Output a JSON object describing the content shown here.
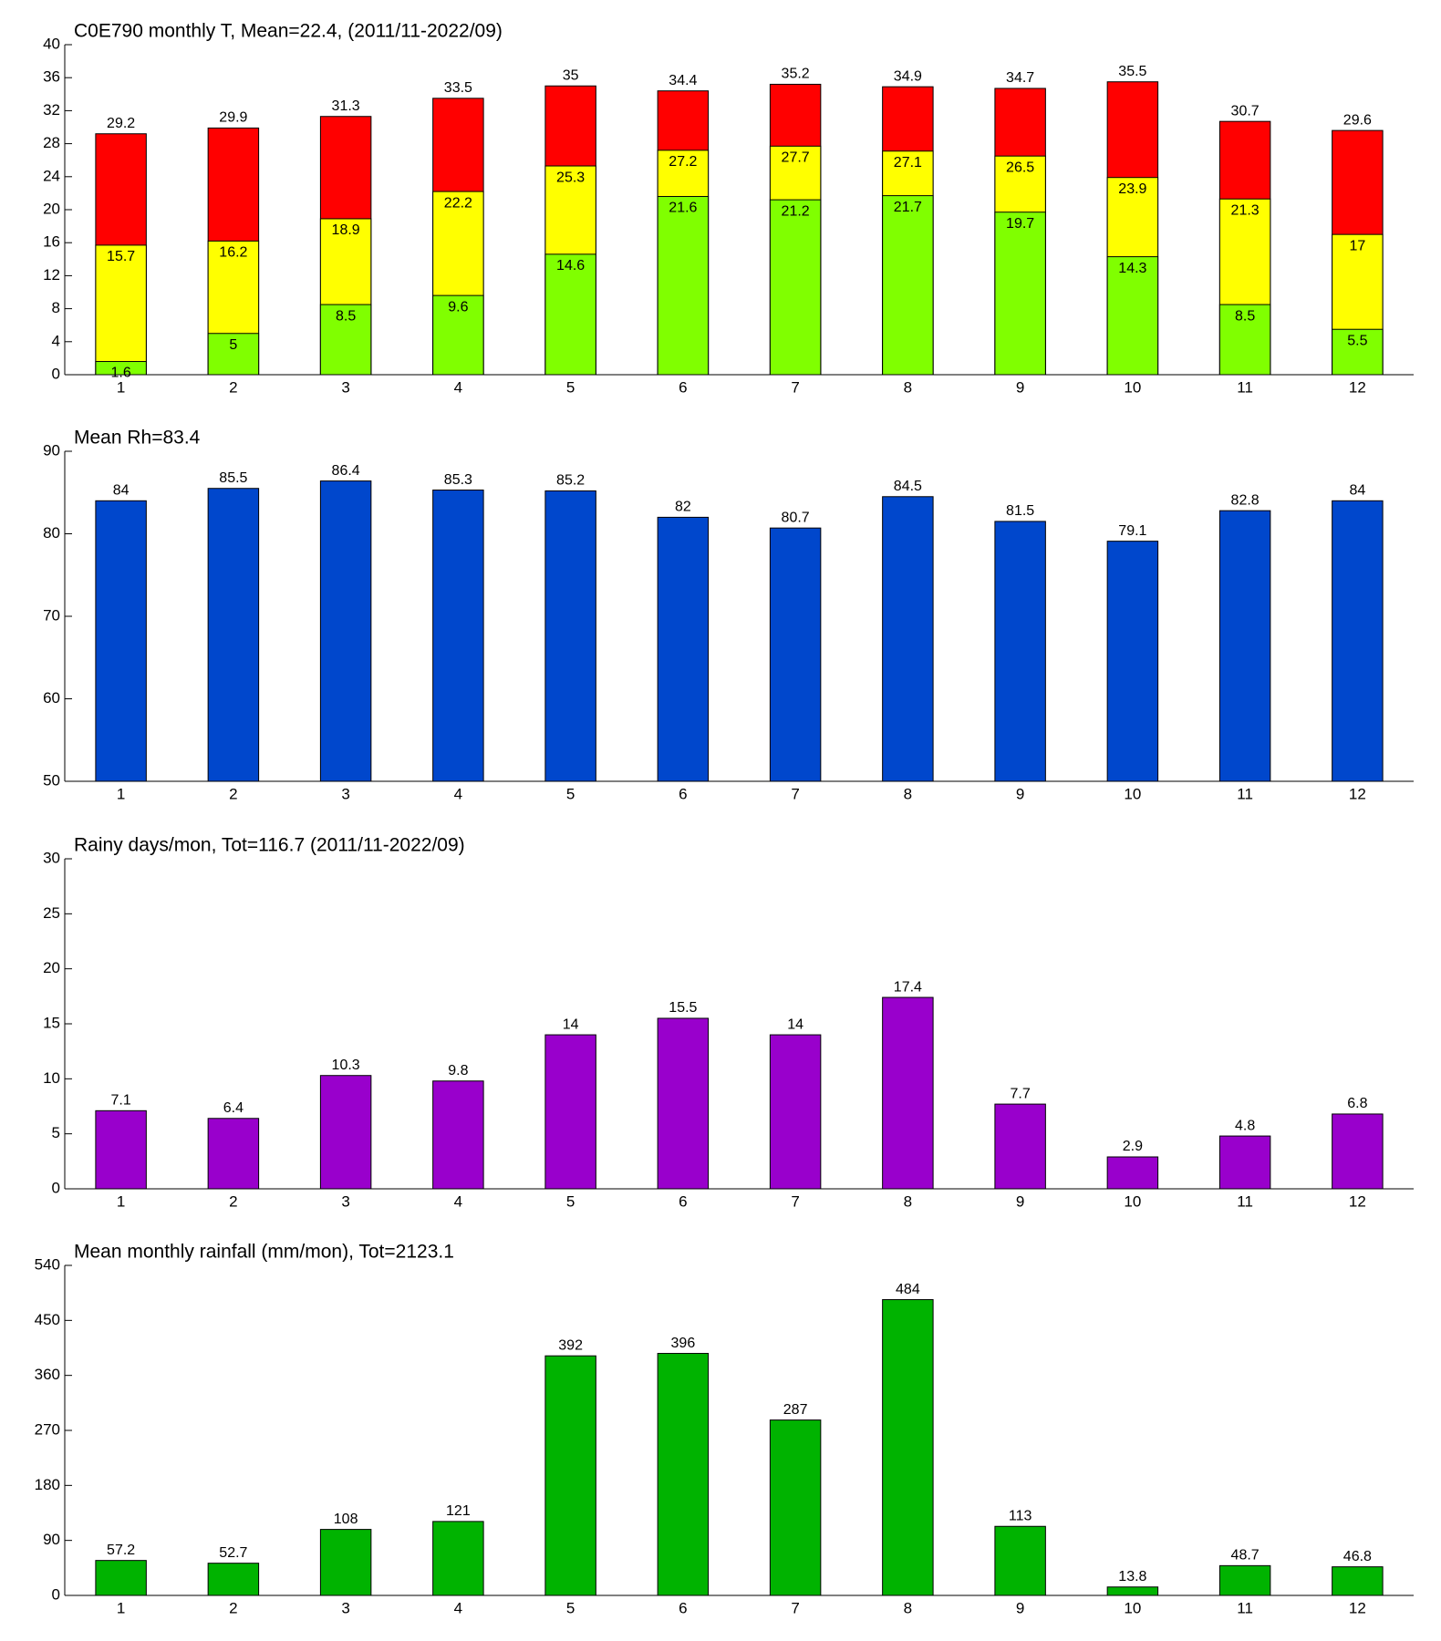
{
  "chart_data": [
    {
      "type": "bar",
      "title": "C0E790 monthly T, Mean=22.4, (2011/11-2022/09)",
      "categories": [
        "1",
        "2",
        "3",
        "4",
        "5",
        "6",
        "7",
        "8",
        "9",
        "10",
        "11",
        "12"
      ],
      "series": [
        {
          "color": "#ff0000",
          "values": [
            29.2,
            29.9,
            31.3,
            33.5,
            35,
            34.4,
            35.2,
            34.9,
            34.7,
            35.5,
            30.7,
            29.6
          ]
        },
        {
          "color": "#ffff00",
          "values": [
            15.7,
            16.2,
            18.9,
            22.2,
            25.3,
            27.2,
            27.7,
            27.1,
            26.5,
            23.9,
            21.3,
            17
          ]
        },
        {
          "color": "#80ff00",
          "values": [
            1.6,
            5,
            8.5,
            9.6,
            14.6,
            21.6,
            21.2,
            21.7,
            19.7,
            14.3,
            8.5,
            5.5
          ]
        }
      ],
      "ylim": [
        0,
        40
      ],
      "yticks": [
        0,
        4,
        8,
        12,
        16,
        20,
        24,
        28,
        32,
        36,
        40
      ]
    },
    {
      "type": "bar",
      "title": "Mean Rh=83.4",
      "categories": [
        "1",
        "2",
        "3",
        "4",
        "5",
        "6",
        "7",
        "8",
        "9",
        "10",
        "11",
        "12"
      ],
      "values": [
        84,
        85.5,
        86.4,
        85.3,
        85.2,
        82,
        80.7,
        84.5,
        81.5,
        79.1,
        82.8,
        84
      ],
      "color": "#0047cc",
      "ylim": [
        50,
        90
      ],
      "yticks": [
        50,
        60,
        70,
        80,
        90
      ]
    },
    {
      "type": "bar",
      "title": "Rainy days/mon, Tot=116.7 (2011/11-2022/09)",
      "categories": [
        "1",
        "2",
        "3",
        "4",
        "5",
        "6",
        "7",
        "8",
        "9",
        "10",
        "11",
        "12"
      ],
      "values": [
        7.1,
        6.4,
        10.3,
        9.8,
        14,
        15.5,
        14,
        17.4,
        7.7,
        2.9,
        4.8,
        6.8
      ],
      "color": "#9900cc",
      "ylim": [
        0,
        30
      ],
      "yticks": [
        0,
        5,
        10,
        15,
        20,
        25,
        30
      ]
    },
    {
      "type": "bar",
      "title": "Mean monthly rainfall (mm/mon), Tot=2123.1",
      "categories": [
        "1",
        "2",
        "3",
        "4",
        "5",
        "6",
        "7",
        "8",
        "9",
        "10",
        "11",
        "12"
      ],
      "values": [
        57.2,
        52.7,
        108,
        121,
        392,
        396,
        287,
        484,
        113,
        13.8,
        48.7,
        46.8
      ],
      "color": "#00b300",
      "ylim": [
        0,
        540
      ],
      "yticks": [
        0,
        90,
        180,
        270,
        360,
        450,
        540
      ]
    }
  ]
}
